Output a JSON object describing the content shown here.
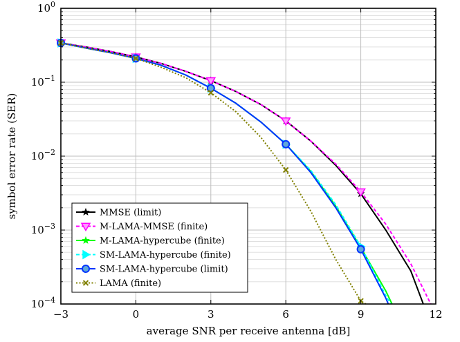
{
  "chart_data": {
    "type": "line",
    "xlabel": "average SNR per receive antenna [dB]",
    "ylabel": "symbol error rate (SER)",
    "xlim": [
      -3,
      12
    ],
    "ylim": [
      0.0001,
      1
    ],
    "yscale": "log",
    "grid": true,
    "legend": "bottom-left",
    "x_ticks": [
      {
        "value": -3,
        "label": "−3"
      },
      {
        "value": 0,
        "label": "0"
      },
      {
        "value": 3,
        "label": "3"
      },
      {
        "value": 6,
        "label": "6"
      },
      {
        "value": 9,
        "label": "9"
      },
      {
        "value": 12,
        "label": "12"
      }
    ],
    "y_ticks": [
      {
        "value": 0.0001,
        "base": "10",
        "exp": "−4"
      },
      {
        "value": 0.001,
        "base": "10",
        "exp": "−3"
      },
      {
        "value": 0.01,
        "base": "10",
        "exp": "−2"
      },
      {
        "value": 0.1,
        "base": "10",
        "exp": "−1"
      },
      {
        "value": 1,
        "base": "10",
        "exp": "0"
      }
    ],
    "series": [
      {
        "name": "MMSE (limit)",
        "color": "#000000",
        "dash": "solid",
        "marker": "star",
        "x": [
          -3,
          -2,
          -1,
          0,
          1,
          2,
          3,
          4,
          5,
          6,
          7,
          8,
          9,
          10,
          11,
          11.5
        ],
        "y": [
          0.34,
          0.3,
          0.26,
          0.22,
          0.18,
          0.14,
          0.105,
          0.075,
          0.05,
          0.03,
          0.016,
          0.0075,
          0.0031,
          0.001,
          0.00028,
          0.0001
        ],
        "marker_x": [
          -3,
          0,
          3,
          6,
          9
        ]
      },
      {
        "name": "M-LAMA-MMSE (finite)",
        "color": "#ff00ff",
        "dash": "dashed",
        "marker": "triangle-down",
        "x": [
          -3,
          -2,
          -1,
          0,
          1,
          2,
          3,
          4,
          5,
          6,
          7,
          8,
          9,
          10,
          11,
          11.8
        ],
        "y": [
          0.34,
          0.3,
          0.26,
          0.22,
          0.18,
          0.14,
          0.105,
          0.075,
          0.05,
          0.03,
          0.016,
          0.0078,
          0.0033,
          0.0012,
          0.00035,
          0.0001
        ],
        "marker_x": [
          -3,
          0,
          3,
          6,
          9
        ]
      },
      {
        "name": "M-LAMA-hypercube (finite)",
        "color": "#00ff00",
        "dash": "solid",
        "marker": "star",
        "x": [
          -3,
          -2,
          -1,
          0,
          1,
          2,
          3,
          4,
          5,
          6,
          7,
          8,
          9,
          10,
          10.25
        ],
        "y": [
          0.34,
          0.29,
          0.25,
          0.21,
          0.17,
          0.125,
          0.083,
          0.052,
          0.029,
          0.0145,
          0.0062,
          0.0021,
          0.00058,
          0.00015,
          0.0001
        ],
        "marker_x": [
          -3,
          0,
          3,
          6,
          9
        ]
      },
      {
        "name": "SM-LAMA-hypercube (finite)",
        "color": "#00ffff",
        "dash": "dashed",
        "marker": "triangle-right",
        "x": [
          -3,
          -2,
          -1,
          0,
          1,
          2,
          3,
          4,
          5,
          6,
          7,
          8,
          9,
          10,
          10.2
        ],
        "y": [
          0.34,
          0.29,
          0.25,
          0.21,
          0.17,
          0.125,
          0.083,
          0.052,
          0.029,
          0.0145,
          0.0064,
          0.0022,
          0.0006,
          0.00013,
          0.0001
        ],
        "marker_x": [
          -3,
          0,
          3,
          6,
          9
        ]
      },
      {
        "name": "SM-LAMA-hypercube (limit)",
        "color": "#0033ff",
        "dash": "solid",
        "marker": "circle",
        "x": [
          -3,
          -2,
          -1,
          0,
          1,
          2,
          3,
          4,
          5,
          6,
          7,
          8,
          9,
          10,
          10.1
        ],
        "y": [
          0.34,
          0.29,
          0.25,
          0.21,
          0.17,
          0.125,
          0.083,
          0.052,
          0.029,
          0.0145,
          0.006,
          0.002,
          0.00055,
          0.00012,
          0.0001
        ],
        "marker_x": [
          -3,
          0,
          3,
          6,
          9
        ]
      },
      {
        "name": "LAMA (finite)",
        "color": "#808000",
        "dash": "dotted",
        "marker": "x",
        "x": [
          -3,
          -2,
          -1,
          0,
          1,
          2,
          3,
          4,
          5,
          6,
          7,
          8,
          9,
          9.2
        ],
        "y": [
          0.34,
          0.29,
          0.25,
          0.21,
          0.16,
          0.115,
          0.072,
          0.04,
          0.018,
          0.0065,
          0.0018,
          0.0004,
          0.00011,
          0.0001
        ],
        "marker_x": [
          -3,
          0,
          3,
          6,
          9
        ]
      }
    ]
  }
}
